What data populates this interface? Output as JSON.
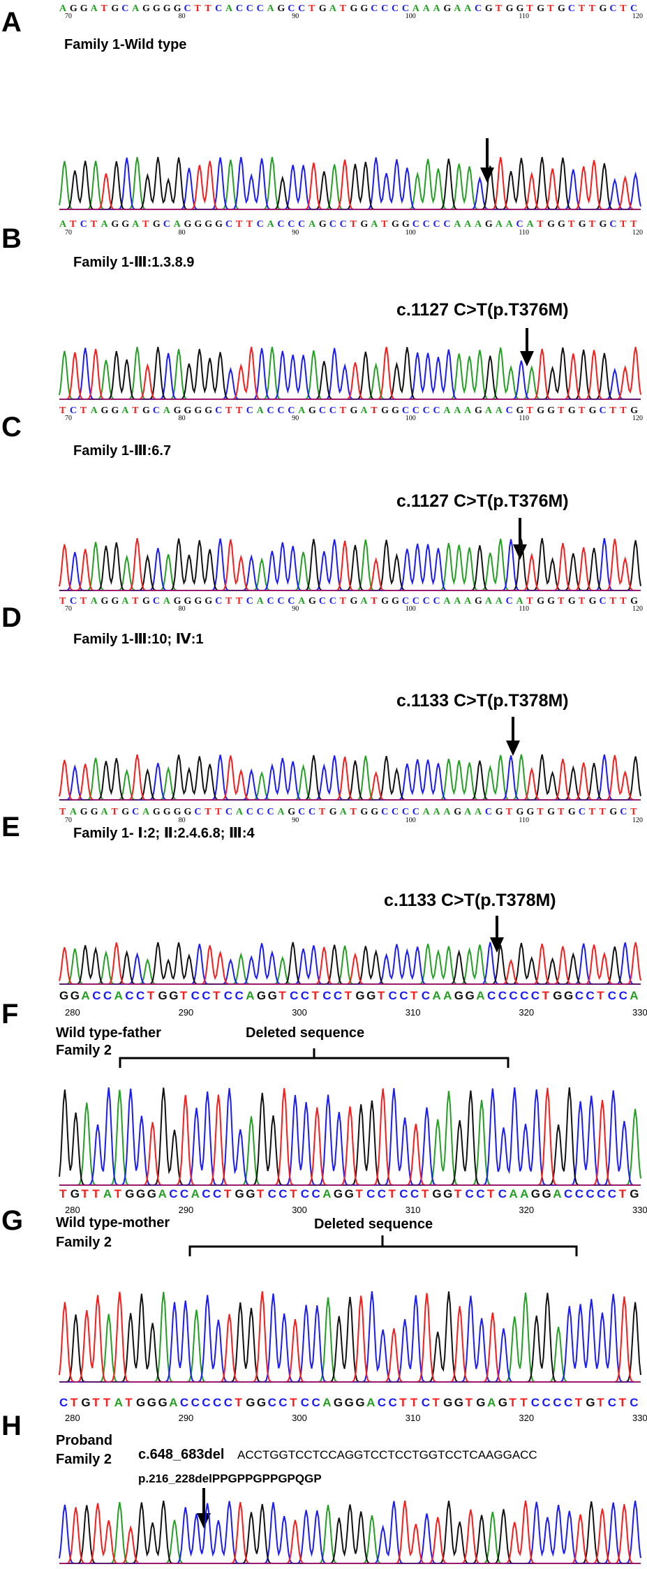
{
  "colors": {
    "A": "#22a022",
    "C": "#1a1aff",
    "G": "#111111",
    "T": "#ff1a1a",
    "N": "#111111"
  },
  "panels": [
    {
      "letter": "A",
      "label": "Family 1-Wild type",
      "mutation": "",
      "sequence": "AGGATGCAGGGGCTTCACCCAGCCTGATGGCCCCAAAGAACGTGGTGTGCTTGCTC",
      "ticks": [
        "70",
        "80",
        "90",
        "100",
        "110",
        "120"
      ]
    },
    {
      "letter": "B",
      "label": "Family 1-Ⅲ:1.3.8.9",
      "mutation": "",
      "sequence": "ATCTAGGATGCAGGGGCTTCACCCAGCCTGATGGCCCCAAAGAACATGGTGTGCTT",
      "ticks": [
        "70",
        "80",
        "90",
        "100",
        "110",
        "120"
      ]
    },
    {
      "letter": "C",
      "label": "Family 1-Ⅲ:6.7",
      "mutation": "c.1127 C>T(p.T376M)",
      "sequence": "TCTAGGATGCAGGGGCTTCACCCAGCCTGATGGCCCCAAAGAACGTGGTGTGCTTG",
      "ticks": [
        "70",
        "80",
        "90",
        "100",
        "110",
        "120"
      ]
    },
    {
      "letter": "D",
      "label": "Family 1-Ⅲ:10; Ⅳ:1",
      "mutation": "c.1127 C>T(p.T376M)",
      "sequence": "TCTAGGATGCAGGGGCTTCACCCAGCCTGATGGCCCCAAAGAACATGGTGTGCTTG",
      "ticks": [
        "70",
        "80",
        "90",
        "100",
        "110",
        "120"
      ]
    },
    {
      "letter": "E",
      "label": "Family 1- Ⅰ:2; Ⅱ:2.4.6.8; Ⅲ:4",
      "mutation": "c.1133 C>T(p.T378M)",
      "sequence": "TAGGATGCAGGGGCTTCACCCAGCCTGATGGCCCCAAAGAACGTGGTGTGCTTGCT",
      "ticks": [
        "70",
        "80",
        "90",
        "100",
        "110",
        "120"
      ]
    },
    {
      "letter": "F",
      "label": "Wild type-father",
      "sublabel": "Family 2",
      "mutation": "c.1133 C>T(p.T378M)",
      "bracket_label": "Deleted sequence",
      "sequence": "GGACCACCTGGTCCTCCAGGTCCTCCTGGTCCTCAAGGACCCCCTGGCCTCCA",
      "ticks": [
        "280",
        "290",
        "300",
        "310",
        "320",
        "330"
      ]
    },
    {
      "letter": "G",
      "label": "Wild type-mother",
      "sublabel": "Family 2",
      "bracket_label": "Deleted sequence",
      "sequence": "TGTTATGGGACCACCTGGTCCTCCAGGTCCTCCTGGTCCTCAAGGACCCCCTG",
      "ticks": [
        "280",
        "290",
        "300",
        "310",
        "320",
        "330"
      ]
    },
    {
      "letter": "H",
      "label": "Proband",
      "sublabel": "Family 2",
      "deletion_prefix": "c.648_683del",
      "deletion_seq": "ACCTGGTCCTCCAGGTCCTCCTGGTCCTCAAGGACC",
      "protein": "p.216_228delPPGPPGPPGPQGP",
      "sequence": "CTGTTATGGGACCCCCTGGCCTCCAGGGACCTTCTGGTGAGTTCCCCTGTCTC",
      "ticks": [
        "280",
        "290",
        "300",
        "310",
        "320",
        "330"
      ]
    }
  ]
}
